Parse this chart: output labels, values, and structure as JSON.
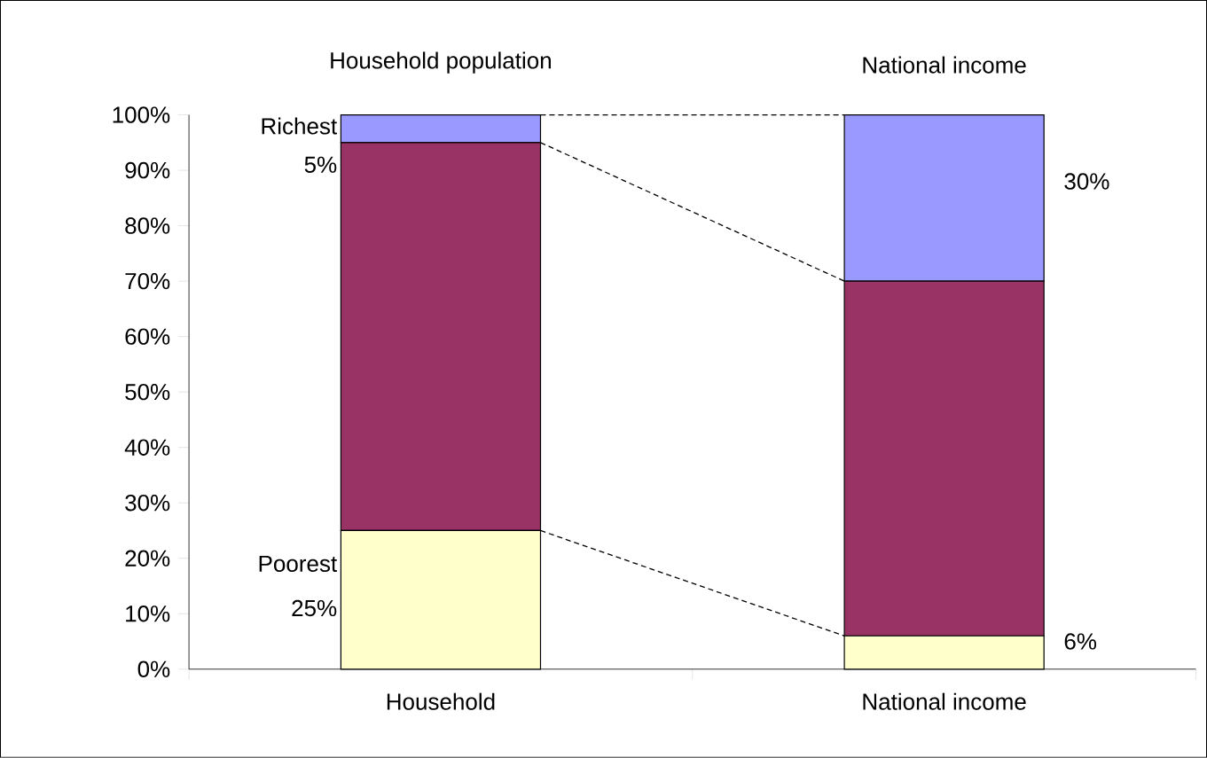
{
  "chart_data": {
    "type": "bar",
    "stacked": true,
    "categories": [
      "Household",
      "National income"
    ],
    "series": [
      {
        "color": "#ffffcc",
        "values": [
          25,
          6
        ]
      },
      {
        "color": "#993366",
        "values": [
          70,
          64
        ]
      },
      {
        "color": "#9999ff",
        "values": [
          5,
          30
        ]
      }
    ],
    "ylim": [
      0,
      100
    ],
    "yticks": [
      {
        "value": 0,
        "label": "0%"
      },
      {
        "value": 10,
        "label": "10%"
      },
      {
        "value": 20,
        "label": "20%"
      },
      {
        "value": 30,
        "label": "30%"
      },
      {
        "value": 40,
        "label": "40%"
      },
      {
        "value": 50,
        "label": "50%"
      },
      {
        "value": 60,
        "label": "60%"
      },
      {
        "value": 70,
        "label": "70%"
      },
      {
        "value": 80,
        "label": "80%"
      },
      {
        "value": 90,
        "label": "90%"
      },
      {
        "value": 100,
        "label": "100%"
      }
    ],
    "grid": false,
    "annotations": [
      "Household population",
      "National income",
      "Richest",
      "5%",
      "Poorest",
      "25%",
      "30%",
      "6%"
    ]
  }
}
